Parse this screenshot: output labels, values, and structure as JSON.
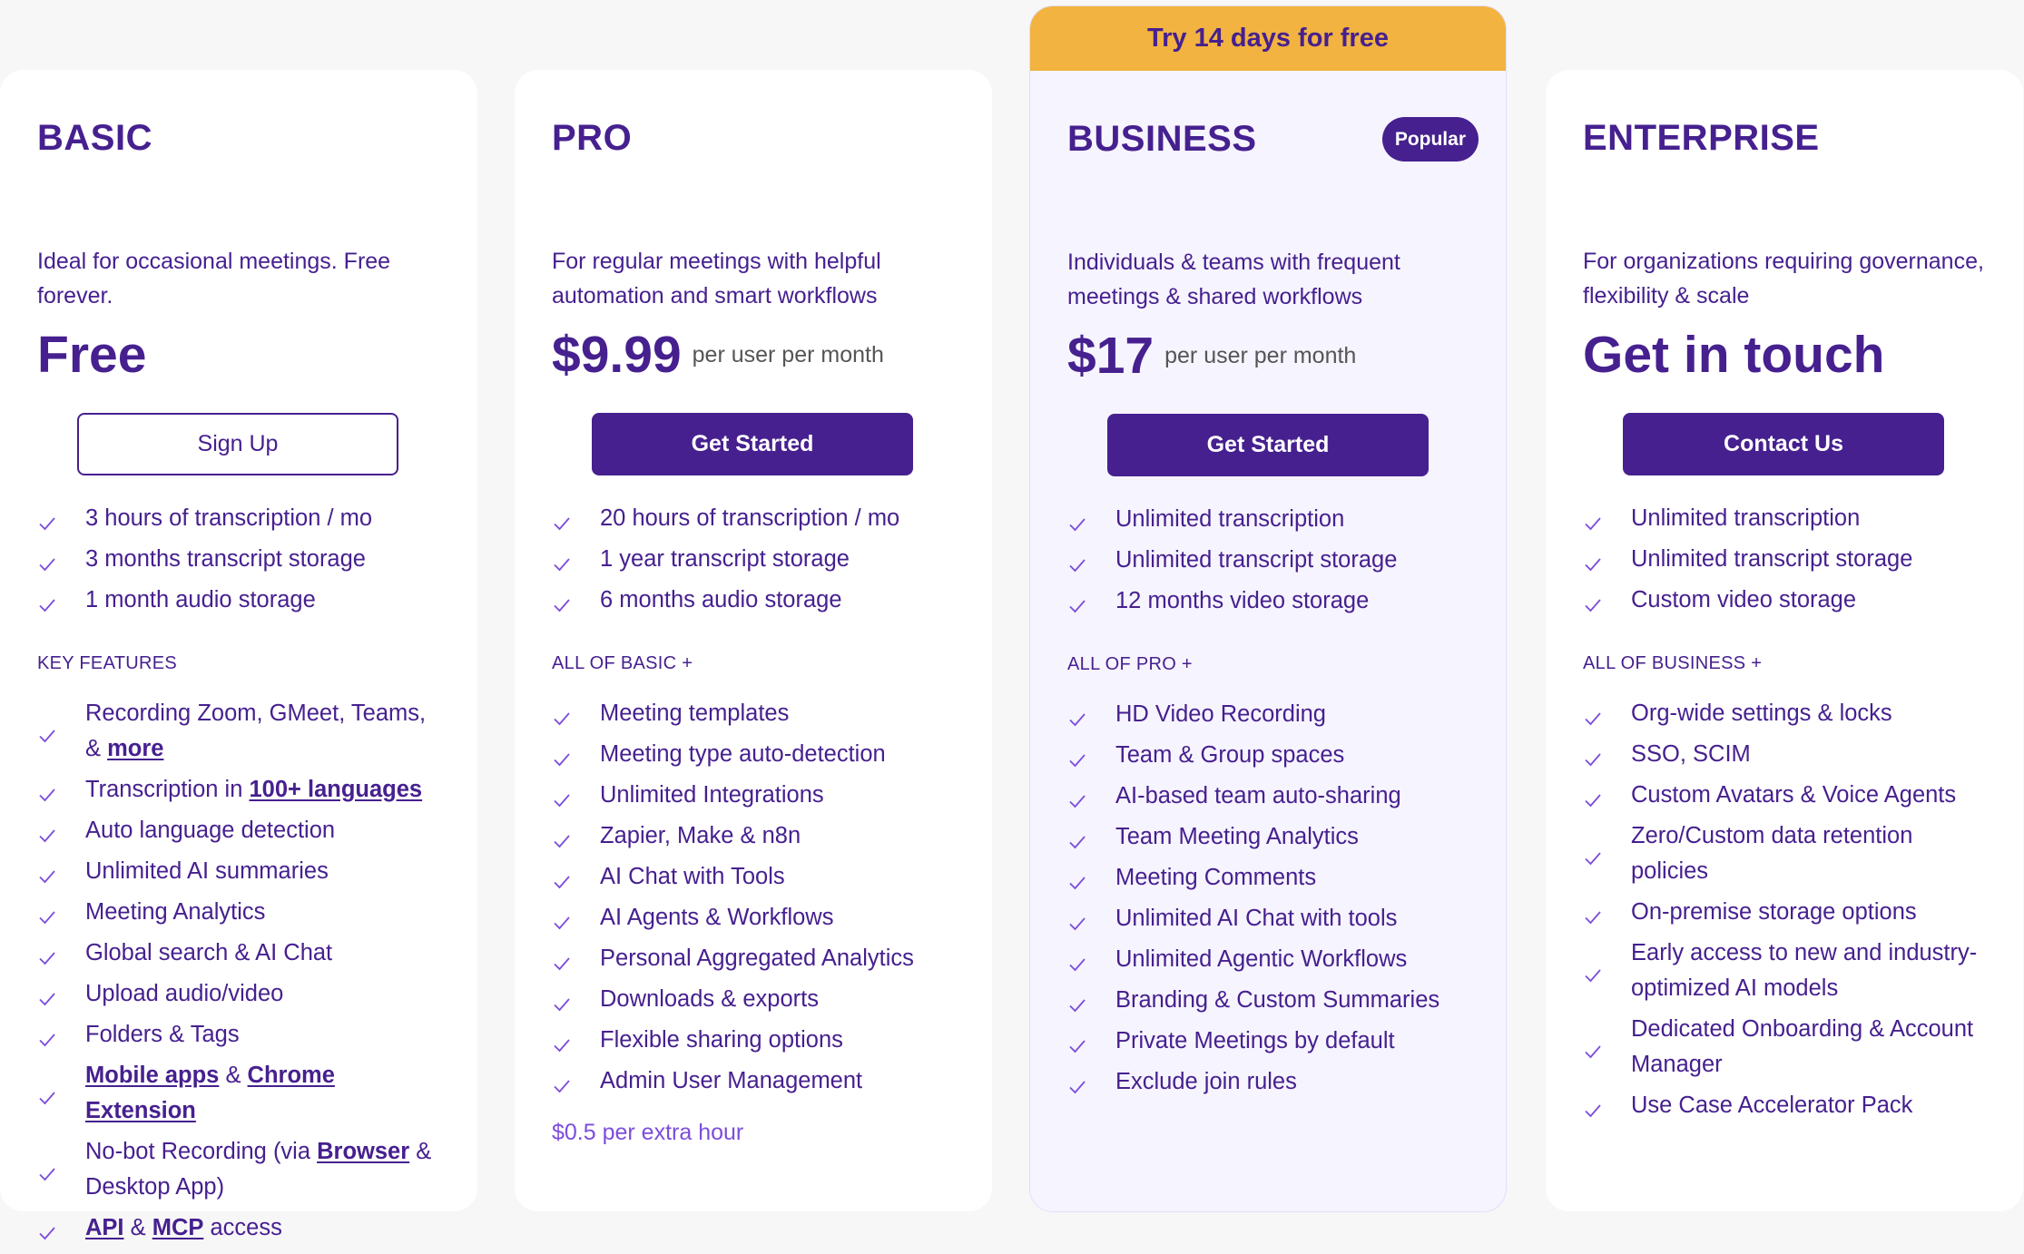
{
  "colors": {
    "primary": "#46208f",
    "check": "#7c4ddb",
    "banner": "#f2b340",
    "business_bg": "#f6f4fe",
    "background": "#f7f7f7"
  },
  "plans": [
    {
      "id": "basic",
      "title": "BASIC",
      "description": "Ideal for occasional meetings. Free forever.",
      "price": "Free",
      "price_suffix": "",
      "button": "Sign Up",
      "button_style": "outline",
      "highlights": [
        [
          {
            "t": "3 hours of transcription / mo"
          }
        ],
        [
          {
            "t": "3 months transcript storage"
          }
        ],
        [
          {
            "t": "1 month audio storage"
          }
        ]
      ],
      "section_label": "KEY FEATURES",
      "features": [
        [
          {
            "t": "Recording Zoom, GMeet, Teams, & "
          },
          {
            "t": "more",
            "link": true
          }
        ],
        [
          {
            "t": "Transcription in "
          },
          {
            "t": "100+ languages",
            "link": true
          }
        ],
        [
          {
            "t": "Auto language detection"
          }
        ],
        [
          {
            "t": "Unlimited AI summaries"
          }
        ],
        [
          {
            "t": "Meeting Analytics"
          }
        ],
        [
          {
            "t": "Global search & AI Chat"
          }
        ],
        [
          {
            "t": "Upload audio/video"
          }
        ],
        [
          {
            "t": "Folders & Tags"
          }
        ],
        [
          {
            "t": "Mobile apps",
            "link": true
          },
          {
            "t": " & "
          },
          {
            "t": "Chrome Extension",
            "link": true
          }
        ],
        [
          {
            "t": "No-bot Recording (via "
          },
          {
            "t": "Browser",
            "link": true
          },
          {
            "t": " & Desktop App)"
          }
        ],
        [
          {
            "t": "API",
            "link": true
          },
          {
            "t": " & "
          },
          {
            "t": "MCP",
            "link": true
          },
          {
            "t": " access"
          }
        ]
      ]
    },
    {
      "id": "pro",
      "title": "PRO",
      "description": "For regular meetings with helpful automation and smart workflows",
      "price": "$9.99",
      "price_suffix": "per user per month",
      "button": "Get Started",
      "button_style": "solid",
      "highlights": [
        [
          {
            "t": "20 hours of transcription / mo"
          }
        ],
        [
          {
            "t": "1 year transcript storage"
          }
        ],
        [
          {
            "t": "6 months audio storage"
          }
        ]
      ],
      "section_label": "ALL OF BASIC +",
      "features": [
        [
          {
            "t": "Meeting templates"
          }
        ],
        [
          {
            "t": "Meeting type auto-detection"
          }
        ],
        [
          {
            "t": "Unlimited Integrations"
          }
        ],
        [
          {
            "t": "Zapier, Make & n8n"
          }
        ],
        [
          {
            "t": "AI Chat with Tools"
          }
        ],
        [
          {
            "t": "AI Agents & Workflows"
          }
        ],
        [
          {
            "t": "Personal Aggregated Analytics"
          }
        ],
        [
          {
            "t": "Downloads & exports"
          }
        ],
        [
          {
            "t": "Flexible sharing options"
          }
        ],
        [
          {
            "t": "Admin User Management"
          }
        ]
      ],
      "extra": "$0.5 per extra hour"
    },
    {
      "id": "business",
      "title": "BUSINESS",
      "badge": "Popular",
      "banner": "Try 14 days for free",
      "description": "Individuals & teams with frequent meetings & shared workflows",
      "price": "$17",
      "price_suffix": "per user per month",
      "button": "Get Started",
      "button_style": "solid",
      "highlights": [
        [
          {
            "t": "Unlimited transcription"
          }
        ],
        [
          {
            "t": "Unlimited transcript storage"
          }
        ],
        [
          {
            "t": "12 months video storage"
          }
        ]
      ],
      "section_label": "ALL OF PRO +",
      "features": [
        [
          {
            "t": "HD Video Recording"
          }
        ],
        [
          {
            "t": "Team & Group spaces"
          }
        ],
        [
          {
            "t": "AI-based team auto-sharing"
          }
        ],
        [
          {
            "t": "Team Meeting Analytics"
          }
        ],
        [
          {
            "t": "Meeting Comments"
          }
        ],
        [
          {
            "t": "Unlimited AI Chat with tools"
          }
        ],
        [
          {
            "t": "Unlimited Agentic Workflows"
          }
        ],
        [
          {
            "t": "Branding & Custom Summaries"
          }
        ],
        [
          {
            "t": "Private Meetings by default"
          }
        ],
        [
          {
            "t": "Exclude join rules"
          }
        ]
      ]
    },
    {
      "id": "enterprise",
      "title": "ENTERPRISE",
      "description": "For organizations requiring governance, flexibility & scale",
      "price": "Get in touch",
      "price_suffix": "",
      "button": "Contact Us",
      "button_style": "solid",
      "highlights": [
        [
          {
            "t": "Unlimited transcription"
          }
        ],
        [
          {
            "t": "Unlimited transcript storage"
          }
        ],
        [
          {
            "t": "Custom video storage"
          }
        ]
      ],
      "section_label": "ALL OF BUSINESS +",
      "features": [
        [
          {
            "t": "Org-wide settings & locks"
          }
        ],
        [
          {
            "t": "SSO, SCIM"
          }
        ],
        [
          {
            "t": "Custom Avatars & Voice Agents"
          }
        ],
        [
          {
            "t": "Zero/Custom data retention policies"
          }
        ],
        [
          {
            "t": "On-premise storage options"
          }
        ],
        [
          {
            "t": "Early access to new and industry-optimized AI models"
          }
        ],
        [
          {
            "t": "Dedicated Onboarding & Account Manager"
          }
        ],
        [
          {
            "t": "Use Case Accelerator Pack"
          }
        ]
      ]
    }
  ]
}
